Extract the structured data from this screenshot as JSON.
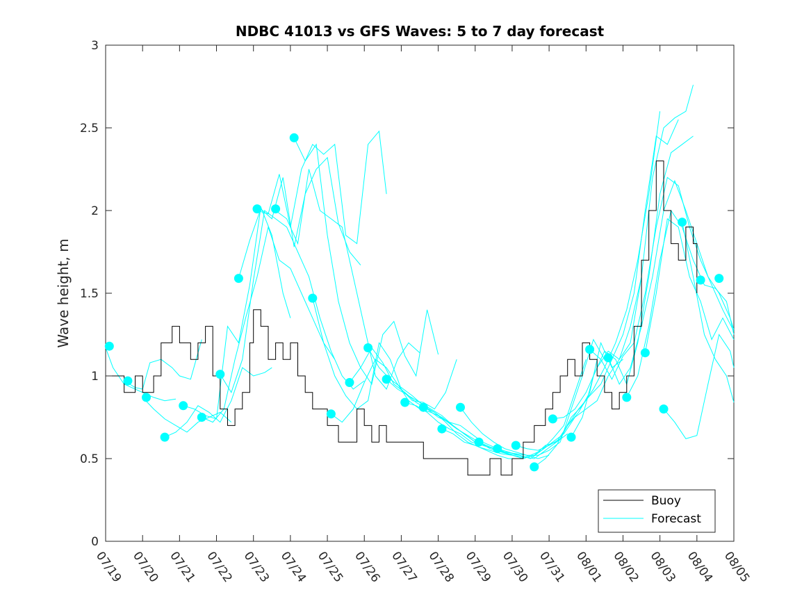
{
  "chart_data": {
    "type": "line",
    "title": "NDBC 41013 vs GFS Waves: 5 to 7 day forecast",
    "xlabel": "",
    "ylabel": "Wave height, m",
    "ylim": [
      0,
      3
    ],
    "yticks": [
      "0",
      "0.5",
      "1",
      "1.5",
      "2",
      "2.5",
      "3"
    ],
    "xlim": [
      0,
      17
    ],
    "xticks": [
      "07/19",
      "07/20",
      "07/21",
      "07/22",
      "07/23",
      "07/24",
      "07/25",
      "07/26",
      "07/27",
      "07/28",
      "07/29",
      "07/30",
      "07/31",
      "08/01",
      "08/02",
      "08/03",
      "08/04",
      "08/05"
    ],
    "legend": {
      "placement": "bottom-right",
      "entries": [
        "Buoy",
        "Forecast"
      ]
    },
    "colors": {
      "buoy": "#000000",
      "forecast": "#00ffff",
      "axis": "#262626"
    },
    "buoy": {
      "name": "Buoy",
      "x": [
        0,
        0.5,
        0.8,
        1.0,
        1.3,
        1.5,
        1.8,
        2.0,
        2.3,
        2.5,
        2.7,
        2.9,
        3.1,
        3.3,
        3.5,
        3.7,
        3.9,
        4.0,
        4.2,
        4.4,
        4.6,
        4.8,
        5.0,
        5.2,
        5.4,
        5.6,
        5.8,
        6.0,
        6.3,
        6.5,
        6.8,
        7.0,
        7.2,
        7.4,
        7.6,
        7.8,
        8.0,
        8.3,
        8.6,
        8.9,
        9.2,
        9.5,
        9.8,
        10.1,
        10.4,
        10.7,
        11.0,
        11.3,
        11.6,
        11.9,
        12.1,
        12.3,
        12.5,
        12.7,
        12.9,
        13.1,
        13.3,
        13.5,
        13.7,
        13.9,
        14.1,
        14.3,
        14.5,
        14.7,
        14.9,
        15.1,
        15.3,
        15.5,
        15.7,
        15.9,
        16.0
      ],
      "y": [
        1.0,
        0.9,
        1.0,
        0.9,
        1.0,
        1.2,
        1.3,
        1.2,
        1.1,
        1.2,
        1.3,
        1.0,
        0.8,
        0.7,
        0.8,
        0.9,
        1.2,
        1.4,
        1.3,
        1.1,
        1.2,
        1.1,
        1.2,
        1.0,
        0.9,
        0.8,
        0.8,
        0.7,
        0.6,
        0.6,
        0.8,
        0.7,
        0.6,
        0.7,
        0.6,
        0.6,
        0.6,
        0.6,
        0.5,
        0.5,
        0.5,
        0.5,
        0.4,
        0.4,
        0.5,
        0.4,
        0.5,
        0.6,
        0.7,
        0.8,
        0.9,
        1.0,
        1.1,
        1.0,
        1.2,
        1.1,
        1.0,
        0.9,
        0.8,
        0.9,
        1.0,
        1.3,
        1.7,
        2.0,
        2.3,
        2.0,
        1.8,
        1.7,
        1.9,
        1.8,
        1.5
      ]
    },
    "forecast_series": [
      {
        "x": [
          0.0,
          0.2,
          0.5,
          0.8,
          1.0,
          1.3,
          1.6,
          1.9
        ],
        "y": [
          1.17,
          1.05,
          0.95,
          0.92,
          0.9,
          0.87,
          0.85,
          0.86
        ]
      },
      {
        "x": [
          0.5,
          0.8,
          1.0,
          1.2,
          1.5,
          1.8,
          2.0,
          2.3,
          2.6
        ],
        "y": [
          0.97,
          0.93,
          0.92,
          1.08,
          1.1,
          1.05,
          1.0,
          0.98,
          1.22
        ]
      },
      {
        "x": [
          1.0,
          1.3,
          1.6,
          1.9,
          2.2,
          2.5,
          2.8,
          3.1,
          3.4
        ],
        "y": [
          0.87,
          0.8,
          0.74,
          0.7,
          0.66,
          0.72,
          0.75,
          0.78,
          0.72
        ]
      },
      {
        "x": [
          1.6,
          1.9,
          2.2,
          2.5,
          2.8,
          3.1,
          3.4,
          3.7,
          4.0,
          4.3,
          4.5
        ],
        "y": [
          0.63,
          0.66,
          0.72,
          0.82,
          0.78,
          0.72,
          0.85,
          1.05,
          1.0,
          1.02,
          1.05
        ]
      },
      {
        "x": [
          2.1,
          2.4,
          2.7,
          3.0,
          3.3,
          3.6,
          3.9,
          4.2,
          4.5,
          4.8,
          5.0
        ],
        "y": [
          0.82,
          0.8,
          0.76,
          0.74,
          1.3,
          1.2,
          1.55,
          2.02,
          1.85,
          1.5,
          1.35
        ]
      },
      {
        "x": [
          2.6,
          2.9,
          3.2,
          3.5,
          3.8,
          4.1,
          4.4,
          4.7,
          5.0,
          5.3,
          5.6,
          5.9,
          6.2
        ],
        "y": [
          0.75,
          0.72,
          0.8,
          1.1,
          1.36,
          1.6,
          1.9,
          1.7,
          1.65,
          1.5,
          1.35,
          1.2,
          1.1
        ]
      },
      {
        "x": [
          3.1,
          3.4,
          3.7,
          4.0,
          4.3,
          4.6,
          4.9,
          5.2,
          5.5,
          5.8,
          6.1,
          6.4,
          6.7,
          7.0
        ],
        "y": [
          1.01,
          0.9,
          1.1,
          1.58,
          2.0,
          1.95,
          1.9,
          1.75,
          1.6,
          1.35,
          1.15,
          1.0,
          0.92,
          0.97
        ]
      },
      {
        "x": [
          3.6,
          3.9,
          4.2,
          4.5,
          4.8,
          5.1,
          5.4,
          5.7,
          6.0,
          6.3,
          6.6,
          6.9
        ],
        "y": [
          1.59,
          1.82,
          2.01,
          1.95,
          2.2,
          1.78,
          2.1,
          2.25,
          2.32,
          1.92,
          1.75,
          1.67
        ]
      },
      {
        "x": [
          4.1,
          4.4,
          4.7,
          5.0,
          5.3,
          5.6,
          5.9,
          6.2,
          6.5,
          6.8,
          7.1,
          7.4,
          7.6
        ],
        "y": [
          2.0,
          1.98,
          2.22,
          1.9,
          2.25,
          2.4,
          2.34,
          2.4,
          1.85,
          1.8,
          2.4,
          2.48,
          2.1
        ]
      },
      {
        "x": [
          4.6,
          4.9,
          5.2,
          5.5,
          5.8,
          6.1,
          6.4,
          6.7,
          7.0,
          7.3,
          7.6,
          7.9,
          8.2,
          8.5
        ],
        "y": [
          2.0,
          1.95,
          1.8,
          2.25,
          2.0,
          1.95,
          1.9,
          1.6,
          1.3,
          1.0,
          0.92,
          1.1,
          1.2,
          1.14
        ]
      },
      {
        "x": [
          5.1,
          5.4,
          5.7,
          6.0,
          6.3,
          6.6,
          6.9,
          7.2,
          7.5,
          7.8,
          8.1,
          8.4,
          8.7,
          9.0
        ],
        "y": [
          2.44,
          2.3,
          2.4,
          1.85,
          1.45,
          1.2,
          1.05,
          0.95,
          1.25,
          1.33,
          1.12,
          1.0,
          1.4,
          1.13
        ]
      },
      {
        "x": [
          5.6,
          5.9,
          6.2,
          6.5,
          6.8,
          7.1,
          7.4,
          7.7,
          8.0,
          8.3,
          8.6,
          8.9,
          9.2,
          9.5
        ],
        "y": [
          1.47,
          1.2,
          1.0,
          0.88,
          0.8,
          0.85,
          1.2,
          1.1,
          0.92,
          0.85,
          0.84,
          0.8,
          0.9,
          1.1
        ]
      },
      {
        "x": [
          6.1,
          6.4,
          6.7,
          7.0,
          7.3,
          7.6,
          7.9,
          8.2,
          8.5,
          8.8,
          9.1,
          9.4,
          9.7,
          10.0
        ],
        "y": [
          0.77,
          0.72,
          0.8,
          0.96,
          1.1,
          1.05,
          0.95,
          0.85,
          0.8,
          0.78,
          0.75,
          0.7,
          0.65,
          0.6
        ]
      },
      {
        "x": [
          6.6,
          6.9,
          7.2,
          7.5,
          7.8,
          8.1,
          8.4,
          8.7,
          9.0,
          9.3,
          9.6,
          9.9,
          10.2,
          10.5
        ],
        "y": [
          0.96,
          1.05,
          1.17,
          1.08,
          0.95,
          0.9,
          0.84,
          0.8,
          0.75,
          0.72,
          0.7,
          0.65,
          0.6,
          0.57
        ]
      },
      {
        "x": [
          7.1,
          7.4,
          7.7,
          8.0,
          8.3,
          8.6,
          8.9,
          9.2,
          9.5,
          9.8,
          10.1,
          10.4,
          10.7,
          11.0
        ],
        "y": [
          1.17,
          1.05,
          0.98,
          0.93,
          0.88,
          0.82,
          0.78,
          0.73,
          0.68,
          0.64,
          0.6,
          0.57,
          0.55,
          0.52
        ]
      },
      {
        "x": [
          7.6,
          7.9,
          8.2,
          8.5,
          8.8,
          9.1,
          9.4,
          9.7,
          10.0,
          10.3,
          10.6,
          10.9,
          11.2,
          11.5
        ],
        "y": [
          0.98,
          0.92,
          0.88,
          0.84,
          0.8,
          0.76,
          0.7,
          0.65,
          0.6,
          0.58,
          0.55,
          0.53,
          0.52,
          0.5
        ]
      },
      {
        "x": [
          8.1,
          8.4,
          8.7,
          9.0,
          9.3,
          9.6,
          9.9,
          10.2,
          10.5,
          10.8,
          11.1,
          11.4,
          11.7,
          12.0
        ],
        "y": [
          0.84,
          0.82,
          0.78,
          0.72,
          0.68,
          0.65,
          0.6,
          0.58,
          0.56,
          0.54,
          0.53,
          0.52,
          0.5,
          0.52
        ]
      },
      {
        "x": [
          8.6,
          8.9,
          9.2,
          9.5,
          9.8,
          10.1,
          10.4,
          10.7,
          11.0,
          11.3,
          11.6,
          11.9,
          12.2,
          12.5
        ],
        "y": [
          0.81,
          0.78,
          0.72,
          0.65,
          0.6,
          0.57,
          0.55,
          0.53,
          0.52,
          0.51,
          0.5,
          0.55,
          0.6,
          0.65
        ]
      },
      {
        "x": [
          9.1,
          9.4,
          9.7,
          10.0,
          10.3,
          10.6,
          10.9,
          11.2,
          11.5,
          11.8,
          12.1,
          12.4,
          12.7,
          13.0
        ],
        "y": [
          0.68,
          0.65,
          0.6,
          0.58,
          0.55,
          0.52,
          0.5,
          0.5,
          0.52,
          0.55,
          0.62,
          0.7,
          0.9,
          1.1
        ]
      },
      {
        "x": [
          9.6,
          9.9,
          10.2,
          10.5,
          10.8,
          11.1,
          11.4,
          11.7,
          12.0,
          12.3,
          12.6,
          12.9,
          13.2,
          13.5
        ],
        "y": [
          0.81,
          0.72,
          0.65,
          0.6,
          0.56,
          0.54,
          0.52,
          0.52,
          0.55,
          0.6,
          0.8,
          1.0,
          1.22,
          1.1
        ]
      },
      {
        "x": [
          10.1,
          10.4,
          10.7,
          11.0,
          11.3,
          11.6,
          11.9,
          12.2,
          12.5,
          12.8,
          13.1,
          13.4,
          13.7,
          14.0
        ],
        "y": [
          0.6,
          0.56,
          0.54,
          0.52,
          0.5,
          0.52,
          0.58,
          0.6,
          0.7,
          0.78,
          0.9,
          1.2,
          1.05,
          1.1
        ]
      },
      {
        "x": [
          10.6,
          10.9,
          11.2,
          11.5,
          11.8,
          12.1,
          12.4,
          12.7,
          13.0,
          13.3,
          13.6,
          13.9,
          14.2,
          14.5
        ],
        "y": [
          0.56,
          0.54,
          0.52,
          0.5,
          0.55,
          0.6,
          0.65,
          0.75,
          0.8,
          0.85,
          1.0,
          1.1,
          1.3,
          1.6
        ]
      },
      {
        "x": [
          11.1,
          11.4,
          11.7,
          12.0,
          12.3,
          12.6,
          12.9,
          13.2,
          13.5,
          13.8,
          14.1,
          14.4,
          14.7,
          15.0
        ],
        "y": [
          0.58,
          0.56,
          0.55,
          0.58,
          0.62,
          0.75,
          0.82,
          0.92,
          1.05,
          1.2,
          1.4,
          1.7,
          2.1,
          2.6
        ]
      },
      {
        "x": [
          11.6,
          11.9,
          12.2,
          12.5,
          12.8,
          13.1,
          13.4,
          13.7,
          14.0,
          14.3,
          14.6,
          14.9,
          15.2,
          15.5
        ],
        "y": [
          0.45,
          0.5,
          0.58,
          0.7,
          0.8,
          0.88,
          0.95,
          1.1,
          1.25,
          1.5,
          2.0,
          2.45,
          2.4,
          2.55
        ]
      },
      {
        "x": [
          12.1,
          12.4,
          12.7,
          13.0,
          13.3,
          13.6,
          13.9,
          14.2,
          14.5,
          14.8,
          15.1,
          15.4,
          15.7,
          15.9
        ],
        "y": [
          0.74,
          0.75,
          0.8,
          0.9,
          1.05,
          1.15,
          1.1,
          1.2,
          1.6,
          2.2,
          2.5,
          2.56,
          2.6,
          2.76
        ]
      },
      {
        "x": [
          12.6,
          12.9,
          13.2,
          13.5,
          13.8,
          14.1,
          14.4,
          14.7,
          15.0,
          15.3,
          15.6,
          15.9
        ],
        "y": [
          0.63,
          0.75,
          1.0,
          1.15,
          1.1,
          0.95,
          1.2,
          1.6,
          2.1,
          2.35,
          2.4,
          2.45
        ]
      },
      {
        "x": [
          13.1,
          13.4,
          13.7,
          14.0,
          14.3,
          14.6,
          14.9,
          15.2,
          15.5,
          15.8,
          16.1,
          16.4,
          16.7,
          17.0
        ],
        "y": [
          1.16,
          1.1,
          0.98,
          1.12,
          1.2,
          1.5,
          1.9,
          2.2,
          2.15,
          1.9,
          1.7,
          1.55,
          1.4,
          1.27
        ]
      },
      {
        "x": [
          13.6,
          13.9,
          14.2,
          14.5,
          14.8,
          15.1,
          15.4,
          15.7,
          16.0,
          16.3,
          16.6,
          16.9,
          17.0
        ],
        "y": [
          1.11,
          0.95,
          1.05,
          1.3,
          1.6,
          2.0,
          2.18,
          2.0,
          1.8,
          1.6,
          1.5,
          1.35,
          1.28
        ]
      },
      {
        "x": [
          14.1,
          14.4,
          14.7,
          15.0,
          15.3,
          15.6,
          15.9,
          16.2,
          16.5,
          16.8,
          17.0
        ],
        "y": [
          0.87,
          1.0,
          1.3,
          1.7,
          2.0,
          1.9,
          1.7,
          1.55,
          1.53,
          1.45,
          1.25
        ]
      },
      {
        "x": [
          14.6,
          14.9,
          15.2,
          15.5,
          15.8,
          16.1,
          16.4,
          16.7,
          17.0
        ],
        "y": [
          1.14,
          1.5,
          1.95,
          1.9,
          1.6,
          1.45,
          1.22,
          1.35,
          1.22
        ]
      },
      {
        "x": [
          15.1,
          15.4,
          15.7,
          16.0,
          16.3,
          16.6,
          16.9,
          17.0
        ],
        "y": [
          0.8,
          0.72,
          0.62,
          0.64,
          0.95,
          1.25,
          1.15,
          1.05
        ]
      },
      {
        "x": [
          15.6,
          15.9,
          16.2,
          16.5,
          16.8,
          17.0
        ],
        "y": [
          1.93,
          1.6,
          1.25,
          1.1,
          1.0,
          0.84
        ]
      }
    ],
    "forecast_points": {
      "x": [
        0.1,
        0.6,
        1.1,
        1.6,
        2.1,
        2.6,
        3.1,
        3.6,
        4.1,
        4.6,
        5.1,
        5.6,
        6.1,
        6.6,
        7.1,
        7.6,
        8.1,
        8.6,
        9.1,
        9.6,
        10.1,
        10.6,
        11.1,
        11.6,
        12.1,
        12.6,
        13.1,
        13.6,
        14.1,
        14.6,
        15.1,
        15.6,
        16.1,
        16.6
      ],
      "y": [
        1.18,
        0.97,
        0.87,
        0.63,
        0.82,
        0.75,
        1.01,
        1.59,
        2.01,
        2.01,
        2.44,
        1.47,
        0.77,
        0.96,
        1.17,
        0.98,
        0.84,
        0.81,
        0.68,
        0.81,
        0.6,
        0.56,
        0.58,
        0.45,
        0.74,
        0.63,
        1.16,
        1.11,
        0.87,
        1.14,
        0.8,
        1.93,
        1.58,
        1.59
      ]
    }
  }
}
